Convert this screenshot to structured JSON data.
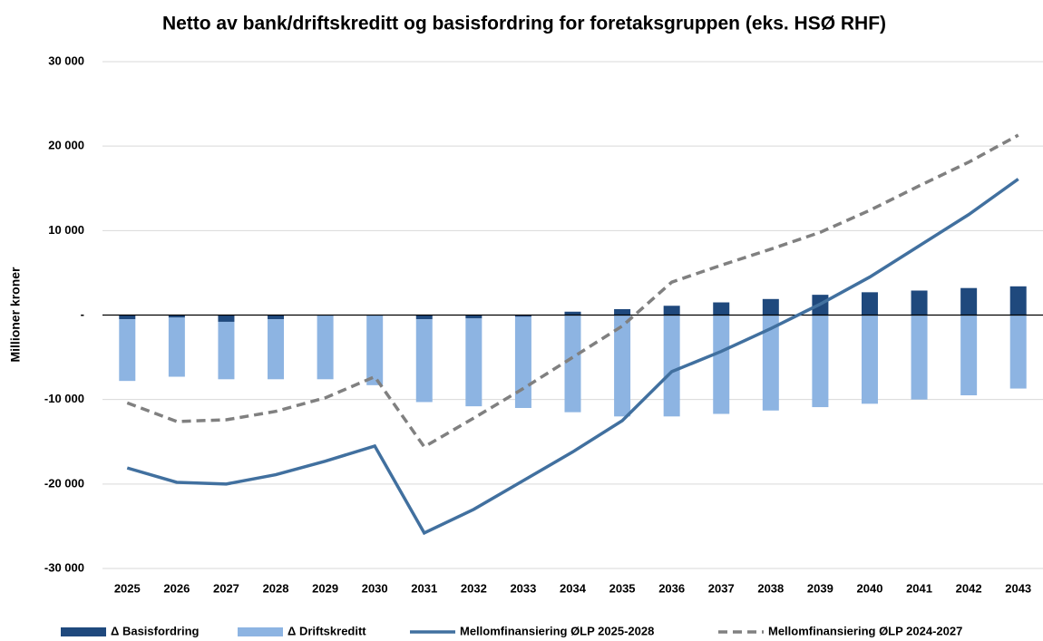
{
  "chart_data": {
    "type": "bar-line",
    "title": "Netto av bank/driftskreditt og basisfordring for foretaksgruppen (eks. HSØ RHF)",
    "y_label": "Millioner kroner",
    "categories": [
      "2025",
      "2026",
      "2027",
      "2028",
      "2029",
      "2030",
      "2031",
      "2032",
      "2033",
      "2034",
      "2035",
      "2036",
      "2037",
      "2038",
      "2039",
      "2040",
      "2041",
      "2042",
      "2043"
    ],
    "series": [
      {
        "name": "Δ Basisfordring",
        "type": "bar",
        "color": "#1f497d",
        "values": [
          -500,
          -300,
          -800,
          -500,
          0,
          0,
          -500,
          -400,
          -200,
          400,
          700,
          1100,
          1500,
          1900,
          2400,
          2700,
          2900,
          3200,
          3400
        ]
      },
      {
        "name": "Δ Driftskreditt",
        "type": "bar",
        "color": "#8db4e2",
        "values": [
          -7300,
          -7000,
          -6800,
          -7100,
          -7600,
          -8300,
          -9800,
          -10400,
          -10800,
          -11500,
          -12000,
          -12000,
          -11700,
          -11300,
          -10900,
          -10500,
          -10000,
          -9500,
          -8700
        ]
      },
      {
        "name": "Mellomfinansiering ØLP 2025-2028",
        "type": "line",
        "color": "#41709f",
        "dash": false,
        "values": [
          -18100,
          -19800,
          -20000,
          -18900,
          -17300,
          -15500,
          -25800,
          -23000,
          -19600,
          -16200,
          -12500,
          -6700,
          -4300,
          -1600,
          1300,
          4500,
          8200,
          11900,
          16100
        ]
      },
      {
        "name": "Mellomfinansiering ØLP 2024-2027",
        "type": "line",
        "color": "#808080",
        "dash": true,
        "values": [
          -10400,
          -12600,
          -12400,
          -11400,
          -9800,
          -7300,
          -15600,
          -12200,
          -8700,
          -5000,
          -1300,
          3900,
          5900,
          7800,
          9800,
          12400,
          15300,
          18100,
          21300
        ]
      }
    ],
    "ylim": [
      -30000,
      30000
    ],
    "yticks": [
      {
        "value": -30000,
        "label": "-30 000"
      },
      {
        "value": -20000,
        "label": "-20 000"
      },
      {
        "value": -10000,
        "label": "-10 000"
      },
      {
        "value": 0,
        "label": "-"
      },
      {
        "value": 10000,
        "label": "10 000"
      },
      {
        "value": 20000,
        "label": "20 000"
      },
      {
        "value": 30000,
        "label": "30 000"
      }
    ],
    "grid": true,
    "legend": "bottom"
  }
}
